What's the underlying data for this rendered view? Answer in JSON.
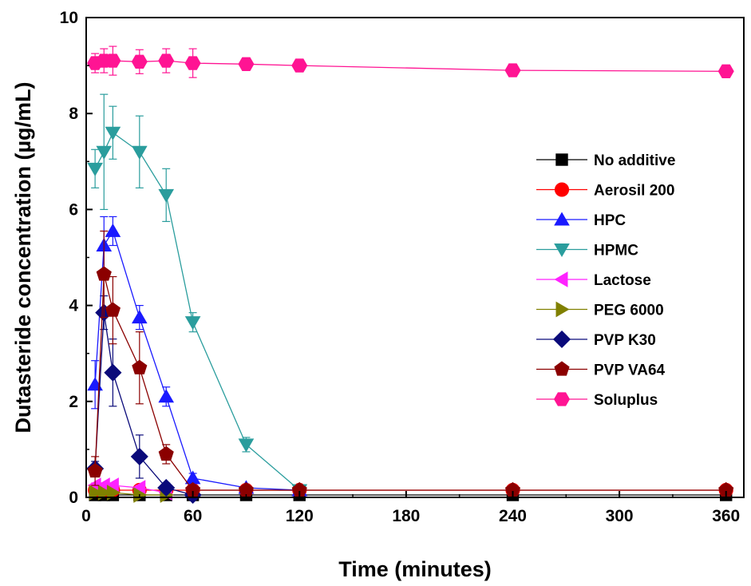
{
  "chart_data": {
    "type": "line",
    "title": "",
    "xlabel": "Time (minutes)",
    "ylabel": "Dutasteride concentration (µg/mL)",
    "xlim": [
      0,
      370
    ],
    "ylim": [
      0,
      10
    ],
    "xticks": [
      0,
      60,
      120,
      180,
      240,
      300,
      360
    ],
    "yticks": [
      0,
      2,
      4,
      6,
      8,
      10
    ],
    "legend_position": "right",
    "series": [
      {
        "name": "No additive",
        "color": "#000000",
        "marker": "square",
        "x": [
          5,
          10,
          15,
          30,
          45,
          60,
          90,
          120,
          240,
          360
        ],
        "y": [
          0.05,
          0.05,
          0.05,
          0.05,
          0.05,
          0.05,
          0.05,
          0.05,
          0.05,
          0.05
        ],
        "err": [
          0.02,
          0.02,
          0.02,
          0.02,
          0.02,
          0.02,
          0.02,
          0.02,
          0.02,
          0.02
        ]
      },
      {
        "name": "Aerosil 200",
        "color": "#ff0000",
        "marker": "circle",
        "x": [
          5,
          10,
          15,
          30,
          45,
          60,
          90,
          120,
          240,
          360
        ],
        "y": [
          0.15,
          0.15,
          0.15,
          0.15,
          0.15,
          0.15,
          0.15,
          0.15,
          0.15,
          0.15
        ],
        "err": [
          0.03,
          0.03,
          0.03,
          0.03,
          0.03,
          0.03,
          0.03,
          0.03,
          0.03,
          0.03
        ]
      },
      {
        "name": "HPC",
        "color": "#1a1aff",
        "marker": "triangle-up",
        "x": [
          5,
          10,
          15,
          30,
          45,
          60,
          90,
          120
        ],
        "y": [
          2.35,
          5.25,
          5.55,
          3.75,
          2.1,
          0.4,
          0.2,
          0.15
        ],
        "err": [
          0.5,
          0.6,
          0.3,
          0.25,
          0.2,
          0.1,
          0.05,
          0.05
        ]
      },
      {
        "name": "HPMC",
        "color": "#2a9d9d",
        "marker": "triangle-down",
        "x": [
          5,
          10,
          15,
          30,
          45,
          60,
          90,
          120
        ],
        "y": [
          6.85,
          7.2,
          7.6,
          7.2,
          6.3,
          3.65,
          1.1,
          0.15
        ],
        "err": [
          0.4,
          1.2,
          0.55,
          0.75,
          0.55,
          0.2,
          0.15,
          0.05
        ]
      },
      {
        "name": "Lactose",
        "color": "#ff22ff",
        "marker": "triangle-left",
        "x": [
          5,
          10,
          15,
          30,
          45
        ],
        "y": [
          0.25,
          0.25,
          0.25,
          0.2,
          0.1
        ],
        "err": [
          0.05,
          0.05,
          0.05,
          0.05,
          0.05
        ]
      },
      {
        "name": "PEG 6000",
        "color": "#808000",
        "marker": "triangle-right",
        "x": [
          5,
          10,
          15,
          30,
          45
        ],
        "y": [
          0.1,
          0.1,
          0.1,
          0.05,
          0.05
        ],
        "err": [
          0.03,
          0.03,
          0.03,
          0.03,
          0.03
        ]
      },
      {
        "name": "PVP K30",
        "color": "#0a0a7a",
        "marker": "diamond",
        "x": [
          5,
          10,
          15,
          30,
          45,
          60
        ],
        "y": [
          0.6,
          3.85,
          2.6,
          0.85,
          0.2,
          0.05
        ],
        "err": [
          0.15,
          0.35,
          0.7,
          0.45,
          0.1,
          0.03
        ]
      },
      {
        "name": "PVP VA64",
        "color": "#8b0000",
        "marker": "pentagon",
        "x": [
          5,
          10,
          15,
          30,
          45,
          60,
          90,
          120,
          240,
          360
        ],
        "y": [
          0.55,
          4.65,
          3.9,
          2.7,
          0.9,
          0.15,
          0.15,
          0.15,
          0.15,
          0.15
        ],
        "err": [
          0.3,
          0.9,
          0.7,
          0.75,
          0.2,
          0.05,
          0.03,
          0.03,
          0.03,
          0.03
        ]
      },
      {
        "name": "Soluplus",
        "color": "#ff1493",
        "marker": "hexagon",
        "x": [
          5,
          10,
          15,
          30,
          45,
          60,
          90,
          120,
          240,
          360
        ],
        "y": [
          9.05,
          9.1,
          9.1,
          9.08,
          9.1,
          9.05,
          9.03,
          9.0,
          8.9,
          8.88
        ],
        "err": [
          0.2,
          0.25,
          0.3,
          0.25,
          0.25,
          0.3,
          0.1,
          0.1,
          0.05,
          0.05
        ]
      }
    ]
  }
}
